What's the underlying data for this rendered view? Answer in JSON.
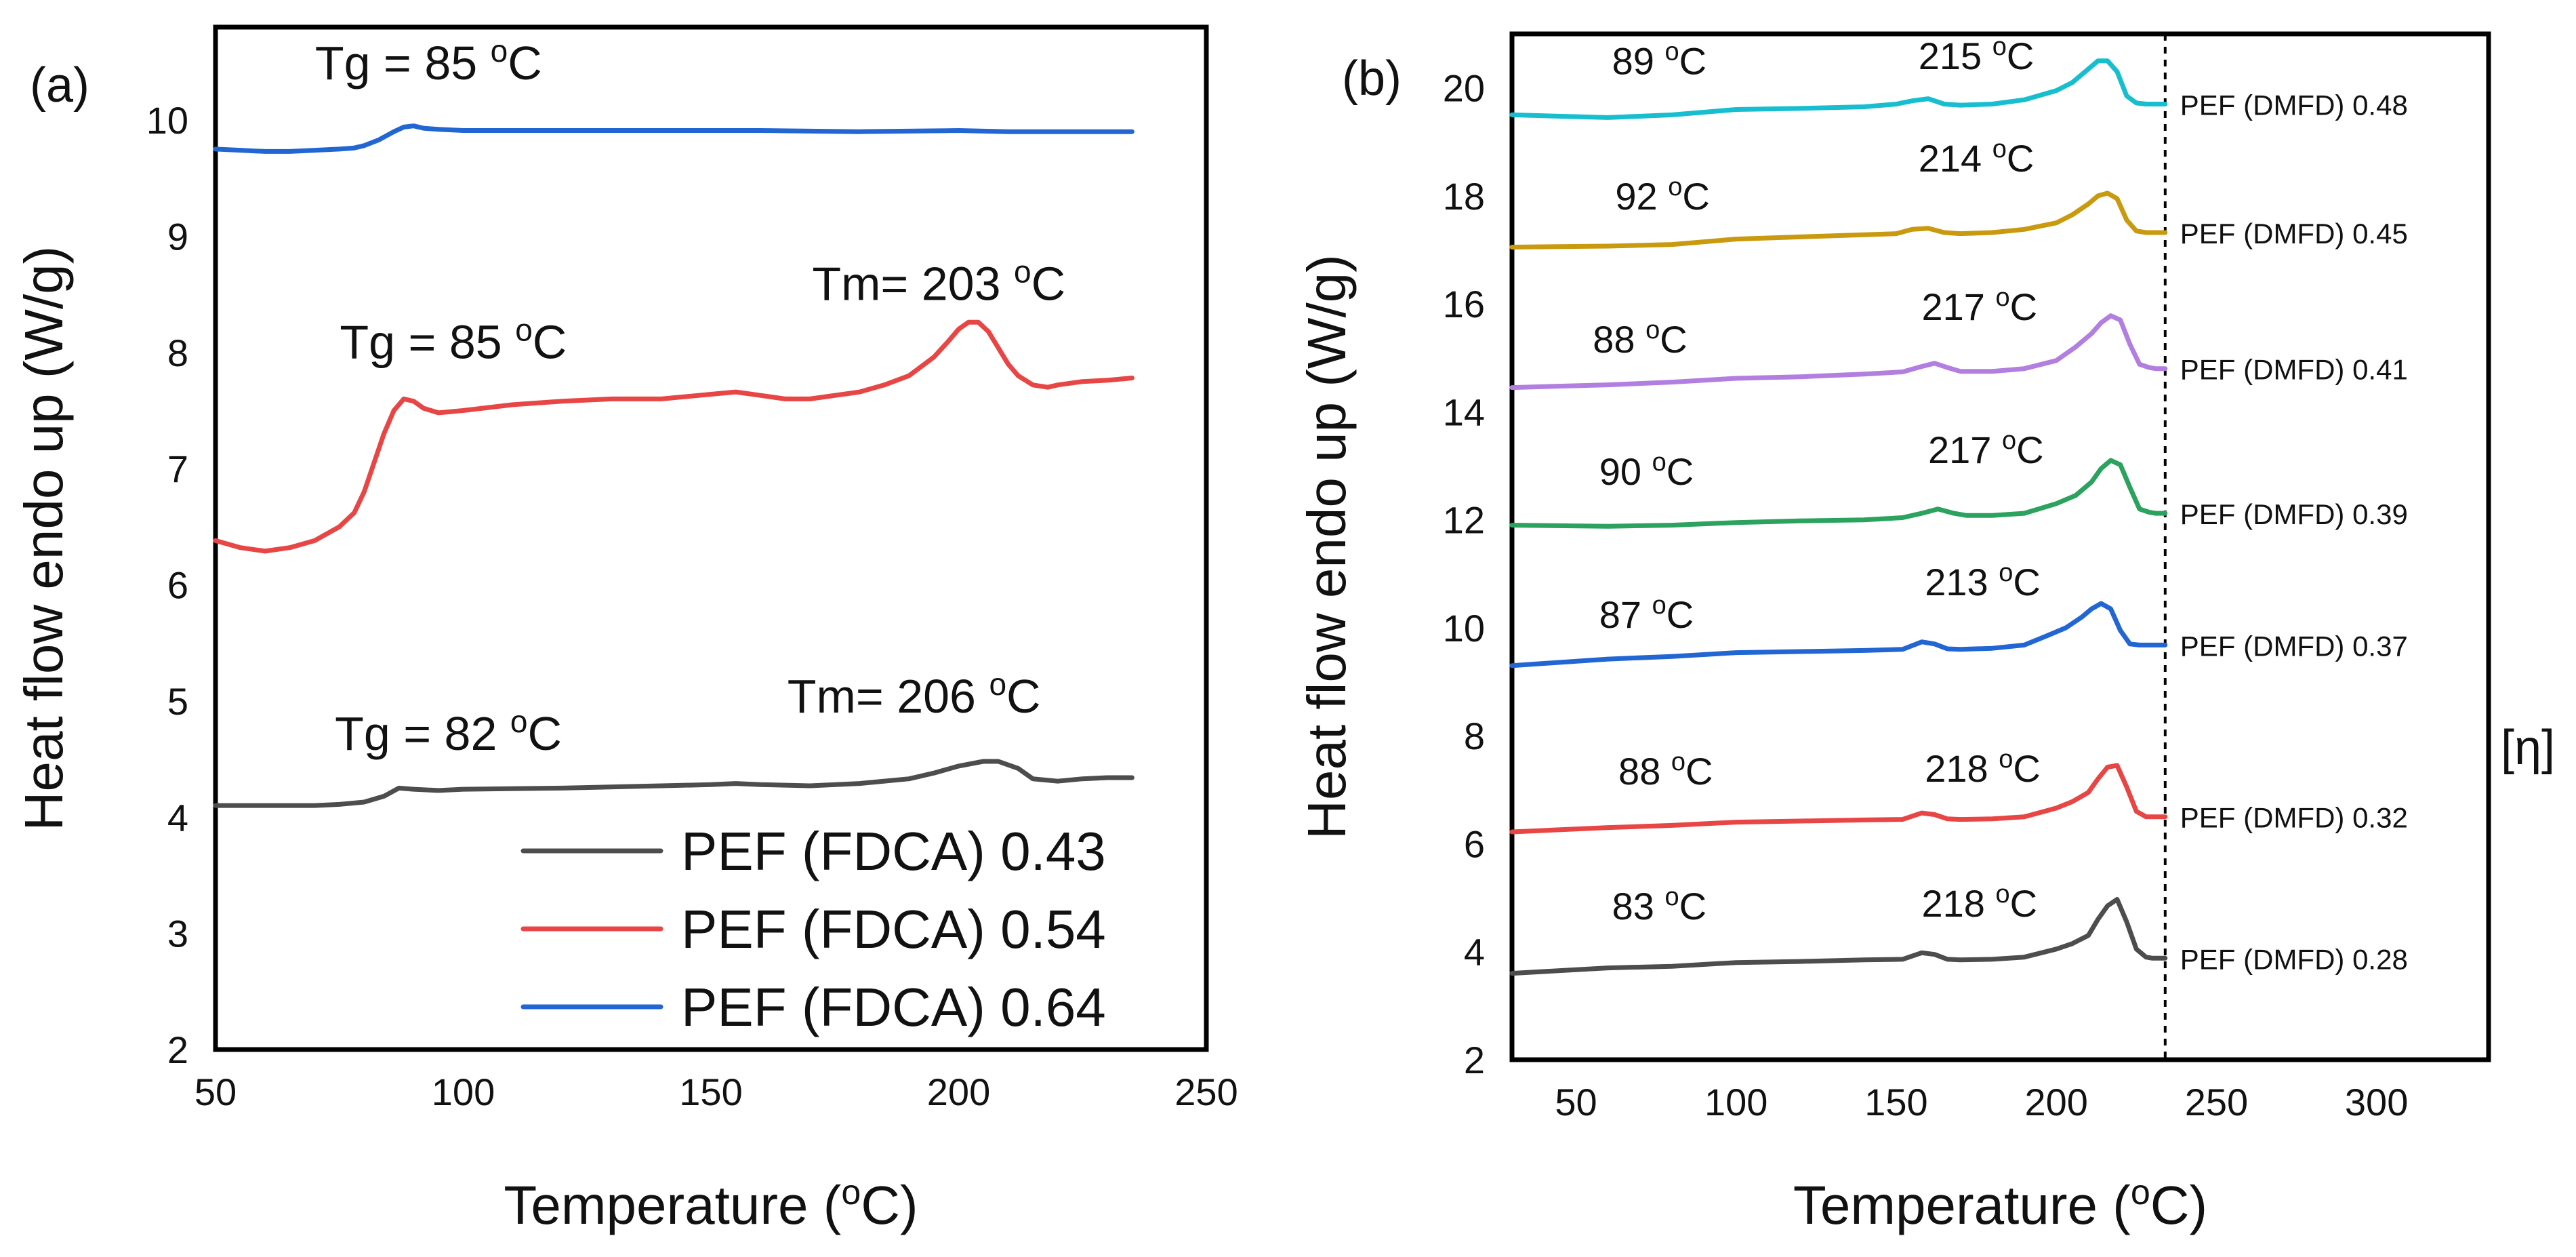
{
  "chart_data": [
    {
      "type": "line",
      "panel_label": "(a)",
      "xlabel": "Temperature (°C)",
      "ylabel": "Heat flow endo up (W/g)",
      "xlim": [
        50,
        250
      ],
      "ylim": [
        2,
        10.8
      ],
      "x_ticks": [
        50,
        100,
        150,
        200,
        250
      ],
      "y_ticks": [
        2,
        3,
        4,
        5,
        6,
        7,
        8,
        9,
        10
      ],
      "grid": false,
      "legend_position": "bottom-right",
      "series": [
        {
          "name": "PEF (FDCA) 0.43",
          "color": "#4d4d4d",
          "x": [
            50,
            60,
            70,
            75,
            80,
            84,
            87,
            90,
            95,
            100,
            120,
            140,
            150,
            155,
            160,
            170,
            180,
            190,
            195,
            200,
            205,
            208,
            212,
            215,
            220,
            225,
            230,
            235
          ],
          "y": [
            4.1,
            4.1,
            4.1,
            4.11,
            4.13,
            4.18,
            4.25,
            4.24,
            4.23,
            4.24,
            4.25,
            4.27,
            4.28,
            4.29,
            4.28,
            4.27,
            4.29,
            4.33,
            4.38,
            4.44,
            4.48,
            4.48,
            4.42,
            4.33,
            4.31,
            4.33,
            4.34,
            4.34
          ]
        },
        {
          "name": "PEF (FDCA) 0.54",
          "color": "#e84545",
          "x": [
            50,
            55,
            60,
            65,
            70,
            75,
            78,
            80,
            82,
            84,
            86,
            88,
            90,
            92,
            95,
            100,
            110,
            120,
            130,
            140,
            150,
            155,
            160,
            165,
            170,
            180,
            185,
            190,
            195,
            198,
            200,
            202,
            204,
            206,
            208,
            210,
            212,
            215,
            218,
            220,
            225,
            230,
            235
          ],
          "y": [
            6.38,
            6.32,
            6.29,
            6.32,
            6.38,
            6.5,
            6.62,
            6.8,
            7.05,
            7.3,
            7.5,
            7.6,
            7.58,
            7.52,
            7.48,
            7.5,
            7.55,
            7.58,
            7.6,
            7.6,
            7.64,
            7.66,
            7.63,
            7.6,
            7.6,
            7.66,
            7.72,
            7.8,
            7.96,
            8.1,
            8.2,
            8.26,
            8.26,
            8.18,
            8.04,
            7.9,
            7.8,
            7.72,
            7.7,
            7.72,
            7.75,
            7.76,
            7.78
          ]
        },
        {
          "name": "PEF (FDCA) 0.64",
          "color": "#2266d4",
          "x": [
            50,
            55,
            60,
            65,
            70,
            75,
            78,
            80,
            83,
            86,
            88,
            90,
            92,
            95,
            100,
            120,
            140,
            160,
            180,
            200,
            210,
            220,
            230,
            235
          ],
          "y": [
            9.75,
            9.74,
            9.73,
            9.73,
            9.74,
            9.75,
            9.76,
            9.78,
            9.83,
            9.9,
            9.94,
            9.95,
            9.93,
            9.92,
            9.91,
            9.91,
            9.91,
            9.91,
            9.9,
            9.91,
            9.9,
            9.9,
            9.9,
            9.9
          ]
        }
      ],
      "annotations": [
        {
          "text": "Tg = 85 °C",
          "x": 93,
          "y": 10.35
        },
        {
          "text": "Tg = 85 °C",
          "x": 98,
          "y": 7.95
        },
        {
          "text": "Tm= 203 °C",
          "x": 196,
          "y": 8.45
        },
        {
          "text": "Tg = 82 °C",
          "x": 97,
          "y": 4.58
        },
        {
          "text": "Tm= 206 °C",
          "x": 191,
          "y": 4.9
        }
      ]
    },
    {
      "type": "line",
      "panel_label": "(b)",
      "xlabel": "Temperature (°C)",
      "ylabel": "Heat flow endo up (W/g)",
      "xlim": [
        30,
        335
      ],
      "ylim": [
        2,
        21
      ],
      "x_ticks": [
        50,
        100,
        150,
        200,
        250,
        300
      ],
      "y_ticks": [
        2,
        4,
        6,
        8,
        10,
        12,
        14,
        16,
        18,
        20
      ],
      "grid": false,
      "right_axis_label": "[η]",
      "reference_line_x": 234,
      "series": [
        {
          "name": "PEF (DMFD) 0.28",
          "color": "#4d4d4d",
          "x": [
            30,
            60,
            80,
            100,
            120,
            140,
            152,
            158,
            162,
            166,
            170,
            180,
            190,
            200,
            205,
            210,
            213,
            216,
            219,
            222,
            225,
            228,
            230,
            234
          ],
          "y": [
            3.6,
            3.7,
            3.73,
            3.8,
            3.82,
            3.85,
            3.86,
            3.98,
            3.95,
            3.86,
            3.85,
            3.86,
            3.9,
            4.05,
            4.15,
            4.3,
            4.6,
            4.85,
            4.97,
            4.55,
            4.05,
            3.9,
            3.88,
            3.88
          ]
        },
        {
          "name": "PEF (DMFD) 0.32",
          "color": "#e84545",
          "x": [
            30,
            60,
            80,
            100,
            120,
            140,
            152,
            158,
            162,
            166,
            170,
            180,
            190,
            200,
            205,
            210,
            213,
            216,
            219,
            222,
            225,
            228,
            230,
            234
          ],
          "y": [
            6.22,
            6.3,
            6.34,
            6.4,
            6.42,
            6.44,
            6.45,
            6.57,
            6.54,
            6.46,
            6.45,
            6.46,
            6.5,
            6.66,
            6.78,
            6.95,
            7.2,
            7.42,
            7.45,
            7.05,
            6.6,
            6.5,
            6.5,
            6.5
          ]
        },
        {
          "name": "PEF (DMFD) 0.37",
          "color": "#2266d4",
          "x": [
            30,
            60,
            80,
            100,
            120,
            140,
            152,
            158,
            162,
            166,
            170,
            180,
            190,
            197,
            203,
            208,
            211,
            214,
            217,
            220,
            223,
            226,
            230,
            234
          ],
          "y": [
            9.3,
            9.42,
            9.47,
            9.54,
            9.56,
            9.58,
            9.6,
            9.74,
            9.7,
            9.61,
            9.6,
            9.62,
            9.68,
            9.85,
            10.0,
            10.2,
            10.35,
            10.45,
            10.35,
            9.95,
            9.7,
            9.68,
            9.68,
            9.68
          ]
        },
        {
          "name": "PEF (DMFD) 0.39",
          "color": "#2ca25f",
          "x": [
            30,
            60,
            80,
            100,
            120,
            140,
            152,
            158,
            163,
            168,
            172,
            180,
            190,
            200,
            206,
            211,
            214,
            217,
            220,
            223,
            226,
            229,
            231,
            234
          ],
          "y": [
            11.9,
            11.88,
            11.9,
            11.95,
            11.98,
            12.0,
            12.04,
            12.12,
            12.2,
            12.12,
            12.08,
            12.08,
            12.12,
            12.3,
            12.45,
            12.7,
            12.95,
            13.1,
            13.02,
            12.6,
            12.2,
            12.14,
            12.12,
            12.12
          ]
        },
        {
          "name": "PEF (DMFD) 0.41",
          "color": "#b27fe0",
          "x": [
            30,
            60,
            80,
            100,
            120,
            140,
            152,
            158,
            162,
            166,
            170,
            180,
            190,
            200,
            206,
            211,
            214,
            217,
            220,
            223,
            226,
            229,
            231,
            234
          ],
          "y": [
            14.45,
            14.5,
            14.55,
            14.62,
            14.65,
            14.7,
            14.74,
            14.84,
            14.9,
            14.82,
            14.75,
            14.75,
            14.8,
            14.95,
            15.2,
            15.45,
            15.65,
            15.78,
            15.7,
            15.25,
            14.88,
            14.82,
            14.8,
            14.8
          ]
        },
        {
          "name": "PEF (DMFD) 0.45",
          "color": "#c99a0e",
          "x": [
            30,
            60,
            80,
            100,
            120,
            140,
            150,
            155,
            160,
            165,
            170,
            180,
            190,
            200,
            205,
            210,
            213,
            216,
            219,
            222,
            225,
            228,
            230,
            234
          ],
          "y": [
            17.05,
            17.07,
            17.1,
            17.2,
            17.24,
            17.28,
            17.3,
            17.38,
            17.4,
            17.32,
            17.3,
            17.32,
            17.38,
            17.5,
            17.65,
            17.85,
            18.0,
            18.05,
            17.95,
            17.55,
            17.35,
            17.32,
            17.32,
            17.32
          ]
        },
        {
          "name": "PEF (DMFD) 0.48",
          "color": "#17becf",
          "x": [
            30,
            60,
            80,
            100,
            120,
            140,
            150,
            155,
            160,
            165,
            170,
            180,
            190,
            200,
            205,
            210,
            213,
            216,
            219,
            222,
            225,
            228,
            230,
            234
          ],
          "y": [
            19.5,
            19.45,
            19.5,
            19.6,
            19.62,
            19.65,
            19.7,
            19.76,
            19.8,
            19.7,
            19.68,
            19.7,
            19.78,
            19.95,
            20.1,
            20.35,
            20.5,
            20.5,
            20.3,
            19.85,
            19.72,
            19.7,
            19.7,
            19.7
          ]
        }
      ],
      "annotations": [
        {
          "text": "89 °C",
          "x": 76,
          "y": 20.25
        },
        {
          "text": "215 °C",
          "x": 175,
          "y": 20.35
        },
        {
          "text": "92 °C",
          "x": 77,
          "y": 17.75
        },
        {
          "text": "214 °C",
          "x": 175,
          "y": 18.45
        },
        {
          "text": "88 °C",
          "x": 70,
          "y": 15.1
        },
        {
          "text": "217 °C",
          "x": 176,
          "y": 15.7
        },
        {
          "text": "90 °C",
          "x": 72,
          "y": 12.65
        },
        {
          "text": "217 °C",
          "x": 178,
          "y": 13.05
        },
        {
          "text": "87 °C",
          "x": 72,
          "y": 10.0
        },
        {
          "text": "213 °C",
          "x": 177,
          "y": 10.6
        },
        {
          "text": "88 °C",
          "x": 78,
          "y": 7.1
        },
        {
          "text": "218 °C",
          "x": 177,
          "y": 7.15
        },
        {
          "text": "83 °C",
          "x": 76,
          "y": 4.6
        },
        {
          "text": "218 °C",
          "x": 176,
          "y": 4.65
        }
      ]
    }
  ]
}
